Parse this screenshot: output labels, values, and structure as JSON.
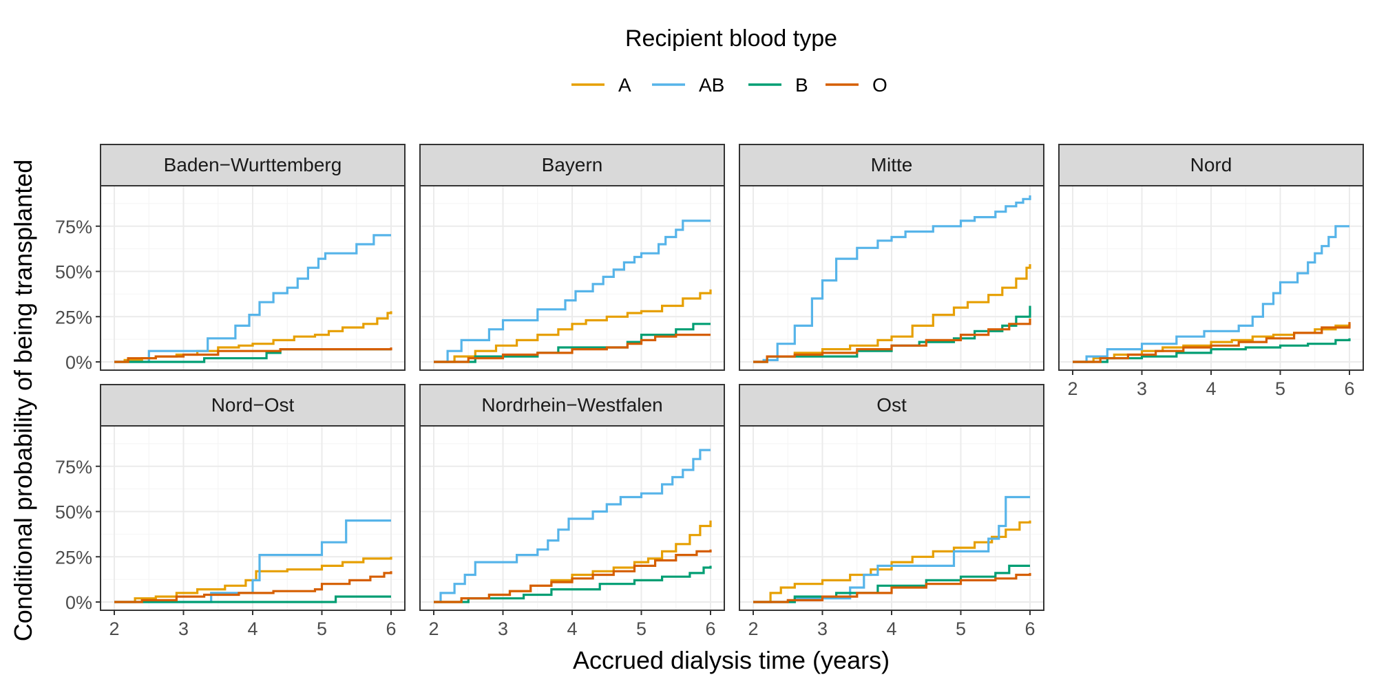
{
  "chart_data": {
    "type": "line",
    "step": true,
    "xlabel": "Accrued dialysis time (years)",
    "ylabel": "Conditional probability of being transplanted",
    "xlim": [
      2,
      6
    ],
    "ylim": [
      0,
      1
    ],
    "x_ticks": [
      "2",
      "3",
      "4",
      "5",
      "6"
    ],
    "y_ticks": [
      "0%",
      "25%",
      "50%",
      "75%"
    ],
    "y_tick_values": [
      0,
      0.25,
      0.5,
      0.75
    ],
    "grid": true,
    "legend": {
      "title": "Recipient blood type",
      "position": "top",
      "entries": [
        {
          "name": "A",
          "color": "#E69F00"
        },
        {
          "name": "AB",
          "color": "#56B4E9"
        },
        {
          "name": "B",
          "color": "#009E73"
        },
        {
          "name": "O",
          "color": "#D55E00"
        }
      ]
    },
    "panels": [
      {
        "title": "Baden−Wurttemberg",
        "series": [
          {
            "name": "A",
            "x": [
              2.0,
              2.15,
              2.4,
              2.6,
              2.9,
              3.2,
              3.5,
              3.8,
              4.0,
              4.3,
              4.6,
              4.9,
              5.1,
              5.3,
              5.6,
              5.8,
              5.95,
              6.0
            ],
            "y": [
              0,
              0.01,
              0.02,
              0.03,
              0.04,
              0.06,
              0.08,
              0.09,
              0.1,
              0.12,
              0.14,
              0.15,
              0.17,
              0.19,
              0.21,
              0.24,
              0.27,
              0.28
            ]
          },
          {
            "name": "AB",
            "x": [
              2.0,
              2.5,
              3.0,
              3.35,
              3.75,
              3.95,
              4.1,
              4.3,
              4.5,
              4.65,
              4.8,
              4.95,
              5.05,
              5.3,
              5.5,
              5.75,
              6.0
            ],
            "y": [
              0,
              0.06,
              0.06,
              0.13,
              0.2,
              0.26,
              0.33,
              0.38,
              0.41,
              0.46,
              0.52,
              0.57,
              0.6,
              0.6,
              0.65,
              0.7,
              0.7
            ]
          },
          {
            "name": "B",
            "x": [
              2.0,
              3.3,
              4.2,
              4.4,
              6.0
            ],
            "y": [
              0,
              0.02,
              0.05,
              0.07,
              0.07
            ]
          },
          {
            "name": "O",
            "x": [
              2.0,
              2.2,
              2.6,
              3.0,
              3.5,
              4.0,
              4.4,
              5.0,
              6.0
            ],
            "y": [
              0,
              0.02,
              0.03,
              0.04,
              0.06,
              0.06,
              0.07,
              0.07,
              0.08
            ]
          }
        ]
      },
      {
        "title": "Bayern",
        "series": [
          {
            "name": "A",
            "x": [
              2.0,
              2.3,
              2.6,
              2.9,
              3.2,
              3.5,
              3.8,
              4.0,
              4.2,
              4.5,
              4.8,
              5.0,
              5.3,
              5.6,
              5.85,
              6.0
            ],
            "y": [
              0,
              0.03,
              0.06,
              0.09,
              0.12,
              0.15,
              0.18,
              0.21,
              0.23,
              0.25,
              0.27,
              0.28,
              0.31,
              0.35,
              0.38,
              0.4
            ]
          },
          {
            "name": "AB",
            "x": [
              2.0,
              2.2,
              2.4,
              2.8,
              3.0,
              3.5,
              3.9,
              4.05,
              4.3,
              4.45,
              4.6,
              4.75,
              4.9,
              5.0,
              5.25,
              5.35,
              5.5,
              5.6,
              6.0
            ],
            "y": [
              0,
              0.06,
              0.12,
              0.18,
              0.23,
              0.29,
              0.34,
              0.39,
              0.43,
              0.47,
              0.51,
              0.55,
              0.58,
              0.6,
              0.65,
              0.69,
              0.73,
              0.78,
              0.78
            ]
          },
          {
            "name": "B",
            "x": [
              2.0,
              2.6,
              3.5,
              3.8,
              4.5,
              4.8,
              5.0,
              5.5,
              5.75,
              6.0
            ],
            "y": [
              0,
              0.03,
              0.05,
              0.08,
              0.08,
              0.11,
              0.15,
              0.18,
              0.21,
              0.21
            ]
          },
          {
            "name": "O",
            "x": [
              2.0,
              2.5,
              3.0,
              3.5,
              4.0,
              4.5,
              4.8,
              5.0,
              5.2,
              5.5,
              6.0
            ],
            "y": [
              0,
              0.02,
              0.04,
              0.05,
              0.07,
              0.08,
              0.1,
              0.12,
              0.14,
              0.15,
              0.15
            ]
          }
        ]
      },
      {
        "title": "Mitte",
        "series": [
          {
            "name": "A",
            "x": [
              2.0,
              2.2,
              2.6,
              3.0,
              3.4,
              3.8,
              4.0,
              4.3,
              4.6,
              4.9,
              5.1,
              5.4,
              5.6,
              5.8,
              5.95,
              6.0
            ],
            "y": [
              0,
              0.03,
              0.05,
              0.07,
              0.09,
              0.12,
              0.14,
              0.2,
              0.26,
              0.3,
              0.33,
              0.37,
              0.41,
              0.46,
              0.52,
              0.54
            ]
          },
          {
            "name": "AB",
            "x": [
              2.0,
              2.15,
              2.35,
              2.6,
              2.85,
              3.0,
              3.2,
              3.5,
              3.8,
              4.0,
              4.2,
              4.6,
              5.0,
              5.2,
              5.5,
              5.65,
              5.8,
              5.9,
              6.0
            ],
            "y": [
              0,
              0.01,
              0.1,
              0.2,
              0.35,
              0.45,
              0.57,
              0.63,
              0.67,
              0.69,
              0.72,
              0.75,
              0.78,
              0.8,
              0.83,
              0.86,
              0.88,
              0.9,
              0.92
            ]
          },
          {
            "name": "B",
            "x": [
              2.0,
              2.2,
              3.0,
              3.5,
              4.0,
              4.4,
              4.9,
              5.2,
              5.6,
              5.8,
              6.0
            ],
            "y": [
              0,
              0.03,
              0.03,
              0.06,
              0.09,
              0.11,
              0.13,
              0.17,
              0.2,
              0.25,
              0.31
            ]
          },
          {
            "name": "O",
            "x": [
              2.0,
              2.2,
              2.6,
              3.0,
              3.5,
              4.0,
              4.5,
              5.0,
              5.4,
              5.7,
              6.0
            ],
            "y": [
              0,
              0.03,
              0.04,
              0.05,
              0.07,
              0.09,
              0.12,
              0.15,
              0.18,
              0.21,
              0.24
            ]
          }
        ]
      },
      {
        "title": "Nord",
        "series": [
          {
            "name": "A",
            "x": [
              2.0,
              2.3,
              2.6,
              3.0,
              3.3,
              3.6,
              4.0,
              4.3,
              4.6,
              4.9,
              5.2,
              5.5,
              5.8,
              6.0
            ],
            "y": [
              0,
              0.02,
              0.04,
              0.06,
              0.08,
              0.09,
              0.11,
              0.12,
              0.14,
              0.15,
              0.16,
              0.18,
              0.2,
              0.21
            ]
          },
          {
            "name": "AB",
            "x": [
              2.0,
              2.2,
              2.5,
              3.0,
              3.5,
              3.9,
              4.4,
              4.6,
              4.75,
              4.9,
              5.0,
              5.25,
              5.4,
              5.5,
              5.6,
              5.7,
              5.8,
              6.0
            ],
            "y": [
              0,
              0.03,
              0.07,
              0.1,
              0.14,
              0.17,
              0.2,
              0.25,
              0.32,
              0.38,
              0.44,
              0.49,
              0.55,
              0.6,
              0.64,
              0.69,
              0.75,
              0.75
            ]
          },
          {
            "name": "B",
            "x": [
              2.0,
              2.5,
              3.0,
              3.5,
              4.0,
              4.5,
              5.0,
              5.4,
              5.8,
              6.0
            ],
            "y": [
              0,
              0.02,
              0.03,
              0.05,
              0.07,
              0.08,
              0.09,
              0.1,
              0.12,
              0.13
            ]
          },
          {
            "name": "O",
            "x": [
              2.0,
              2.4,
              2.8,
              3.2,
              3.6,
              4.0,
              4.4,
              4.8,
              5.2,
              5.6,
              6.0
            ],
            "y": [
              0,
              0.02,
              0.04,
              0.06,
              0.08,
              0.09,
              0.11,
              0.13,
              0.16,
              0.19,
              0.22
            ]
          }
        ]
      },
      {
        "title": "Nord−Ost",
        "series": [
          {
            "name": "A",
            "x": [
              2.0,
              2.3,
              2.6,
              2.9,
              3.2,
              3.6,
              3.9,
              4.05,
              4.5,
              5.0,
              5.3,
              5.6,
              6.0
            ],
            "y": [
              0,
              0.02,
              0.03,
              0.05,
              0.07,
              0.09,
              0.12,
              0.17,
              0.18,
              0.2,
              0.22,
              0.24,
              0.25
            ]
          },
          {
            "name": "AB",
            "x": [
              2.0,
              3.4,
              4.0,
              4.1,
              5.0,
              5.35,
              6.0
            ],
            "y": [
              0,
              0.05,
              0.12,
              0.26,
              0.33,
              0.45,
              0.45
            ]
          },
          {
            "name": "B",
            "x": [
              2.0,
              5.2,
              6.0
            ],
            "y": [
              0,
              0.03,
              0.03
            ]
          },
          {
            "name": "O",
            "x": [
              2.0,
              2.4,
              2.9,
              3.3,
              3.8,
              4.3,
              4.9,
              5.0,
              5.4,
              5.7,
              5.9,
              6.0
            ],
            "y": [
              0,
              0.01,
              0.03,
              0.04,
              0.05,
              0.06,
              0.07,
              0.1,
              0.12,
              0.14,
              0.16,
              0.17
            ]
          }
        ]
      },
      {
        "title": "Nordrhein−Westfalen",
        "series": [
          {
            "name": "A",
            "x": [
              2.0,
              2.4,
              2.8,
              3.1,
              3.4,
              3.7,
              4.0,
              4.3,
              4.6,
              4.9,
              5.1,
              5.3,
              5.5,
              5.7,
              5.85,
              6.0
            ],
            "y": [
              0,
              0.02,
              0.04,
              0.06,
              0.09,
              0.12,
              0.15,
              0.17,
              0.19,
              0.22,
              0.24,
              0.28,
              0.32,
              0.37,
              0.42,
              0.45
            ]
          },
          {
            "name": "AB",
            "x": [
              2.0,
              2.1,
              2.3,
              2.45,
              2.6,
              2.9,
              3.2,
              3.5,
              3.65,
              3.8,
              3.95,
              4.3,
              4.5,
              4.7,
              5.0,
              5.3,
              5.45,
              5.6,
              5.75,
              5.85,
              6.0
            ],
            "y": [
              0,
              0.05,
              0.1,
              0.15,
              0.22,
              0.22,
              0.26,
              0.29,
              0.34,
              0.4,
              0.46,
              0.5,
              0.54,
              0.58,
              0.6,
              0.65,
              0.69,
              0.73,
              0.79,
              0.84,
              0.84
            ]
          },
          {
            "name": "B",
            "x": [
              2.0,
              2.5,
              3.3,
              3.7,
              4.4,
              4.9,
              5.3,
              5.7,
              5.9,
              6.0
            ],
            "y": [
              0,
              0.02,
              0.04,
              0.07,
              0.1,
              0.12,
              0.14,
              0.16,
              0.19,
              0.2
            ]
          },
          {
            "name": "O",
            "x": [
              2.0,
              2.4,
              2.8,
              3.1,
              3.4,
              3.7,
              4.0,
              4.3,
              4.6,
              4.9,
              5.2,
              5.5,
              5.8,
              6.0
            ],
            "y": [
              0,
              0.02,
              0.04,
              0.06,
              0.09,
              0.11,
              0.13,
              0.15,
              0.17,
              0.2,
              0.23,
              0.26,
              0.28,
              0.29
            ]
          }
        ]
      },
      {
        "title": "Ost",
        "series": [
          {
            "name": "A",
            "x": [
              2.0,
              2.25,
              2.4,
              2.6,
              3.0,
              3.4,
              3.7,
              4.0,
              4.3,
              4.6,
              4.9,
              5.2,
              5.45,
              5.65,
              5.85,
              6.0
            ],
            "y": [
              0,
              0.05,
              0.08,
              0.1,
              0.12,
              0.15,
              0.18,
              0.22,
              0.25,
              0.28,
              0.3,
              0.33,
              0.36,
              0.4,
              0.44,
              0.45
            ]
          },
          {
            "name": "AB",
            "x": [
              2.0,
              2.6,
              3.4,
              3.6,
              3.8,
              4.5,
              4.9,
              5.4,
              5.55,
              5.65,
              6.0
            ],
            "y": [
              0,
              0.02,
              0.08,
              0.15,
              0.2,
              0.2,
              0.28,
              0.35,
              0.42,
              0.58,
              0.58
            ]
          },
          {
            "name": "B",
            "x": [
              2.0,
              2.6,
              3.2,
              3.8,
              4.5,
              5.0,
              5.5,
              5.7,
              6.0
            ],
            "y": [
              0,
              0.03,
              0.05,
              0.09,
              0.12,
              0.14,
              0.16,
              0.2,
              0.2
            ]
          },
          {
            "name": "O",
            "x": [
              2.0,
              2.5,
              3.0,
              3.5,
              4.0,
              4.5,
              5.0,
              5.5,
              5.8,
              6.0
            ],
            "y": [
              0,
              0.01,
              0.03,
              0.05,
              0.08,
              0.1,
              0.12,
              0.13,
              0.15,
              0.16
            ]
          }
        ]
      }
    ]
  }
}
